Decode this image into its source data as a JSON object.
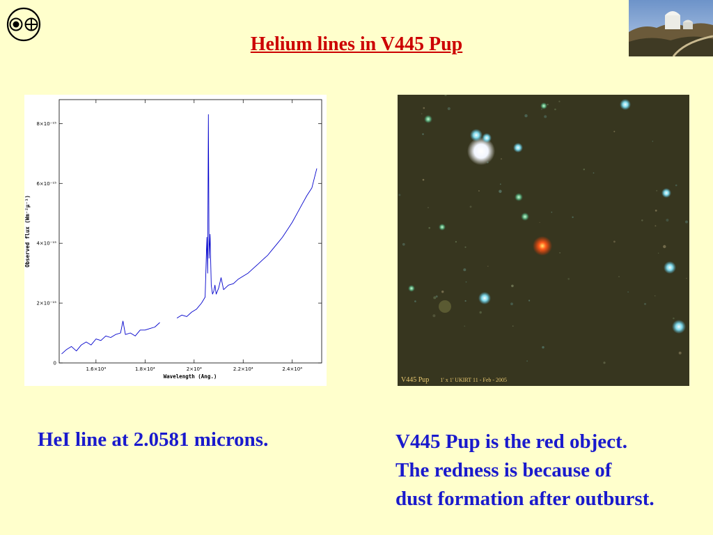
{
  "slide": {
    "title": " Helium lines in V445 Pup",
    "caption_left": "HeI line at 2.0581 microns.",
    "caption_right_lines": [
      "V445 Pup is the red object.",
      "The redness is because of",
      "dust formation after outburst."
    ]
  },
  "sky_image": {
    "label_object": "V445 Pup",
    "label_details": "1' x 1'   UKIRT   11 - Feb - 2005"
  },
  "chart_data": {
    "type": "line",
    "title": "",
    "xlabel": "Wavelength (Ang.)",
    "ylabel": "Observed flux (Wm⁻²μ⁻¹)",
    "xlim": [
      14500,
      25200
    ],
    "ylim": [
      0,
      8.8e-15
    ],
    "x_ticks": [
      16000,
      18000,
      20000,
      22000,
      24000
    ],
    "x_tick_labels": [
      "1.6×10⁴",
      "1.8×10⁴",
      "2×10⁴",
      "2.2×10⁴",
      "2.4×10⁴"
    ],
    "y_ticks": [
      0,
      2e-15,
      4e-15,
      6e-15,
      8e-15
    ],
    "y_tick_labels": [
      "0",
      "2×10⁻¹⁵",
      "4×10⁻¹⁵",
      "6×10⁻¹⁵",
      "8×10⁻¹⁵"
    ],
    "series": [
      {
        "color": "#0000cc",
        "x": [
          14600,
          14800,
          15000,
          15200,
          15400,
          15600,
          15800,
          16000,
          16200,
          16400,
          16600,
          16800,
          17000,
          17100,
          17200,
          17400,
          17600,
          17800,
          18000,
          18200,
          18400,
          18600
        ],
        "y": [
          3e-16,
          4.5e-16,
          5.5e-16,
          4e-16,
          6e-16,
          7e-16,
          6e-16,
          8e-16,
          7.5e-16,
          9e-16,
          8.5e-16,
          9.5e-16,
          1e-15,
          1.4e-15,
          9.5e-16,
          1e-15,
          9e-16,
          1.1e-15,
          1.1e-15,
          1.15e-15,
          1.2e-15,
          1.35e-15
        ]
      },
      {
        "color": "#0000cc",
        "x": [
          19300,
          19500,
          19700,
          19900,
          20100,
          20300,
          20450,
          20520,
          20550,
          20581,
          20610,
          20650,
          20700,
          20750,
          20800,
          20850,
          20900,
          21000,
          21100,
          21200,
          21400,
          21600,
          21800,
          22000,
          22200,
          22400,
          22600,
          22800,
          23000,
          23200,
          23400,
          23600,
          23800,
          24000,
          24200,
          24400,
          24600,
          24800,
          25000
        ],
        "y": [
          1.5e-15,
          1.6e-15,
          1.55e-15,
          1.7e-15,
          1.8e-15,
          2e-15,
          2.2e-15,
          4.2e-15,
          3e-15,
          8.3e-15,
          3.5e-15,
          4.3e-15,
          2.6e-15,
          2.3e-15,
          2.4e-15,
          2.6e-15,
          2.3e-15,
          2.5e-15,
          2.85e-15,
          2.45e-15,
          2.6e-15,
          2.65e-15,
          2.8e-15,
          2.9e-15,
          3e-15,
          3.15e-15,
          3.3e-15,
          3.45e-15,
          3.6e-15,
          3.8e-15,
          4e-15,
          4.2e-15,
          4.45e-15,
          4.7e-15,
          5e-15,
          5.3e-15,
          5.6e-15,
          5.85e-15,
          6.5e-15
        ]
      }
    ]
  },
  "colors": {
    "background": "#ffffcc",
    "title": "#cc0000",
    "caption": "#1a1acc",
    "spectrum_line": "#0000cc"
  },
  "icons": {
    "logo": "circle-dot-cross-logo-icon",
    "photo": "observatory-photo"
  }
}
